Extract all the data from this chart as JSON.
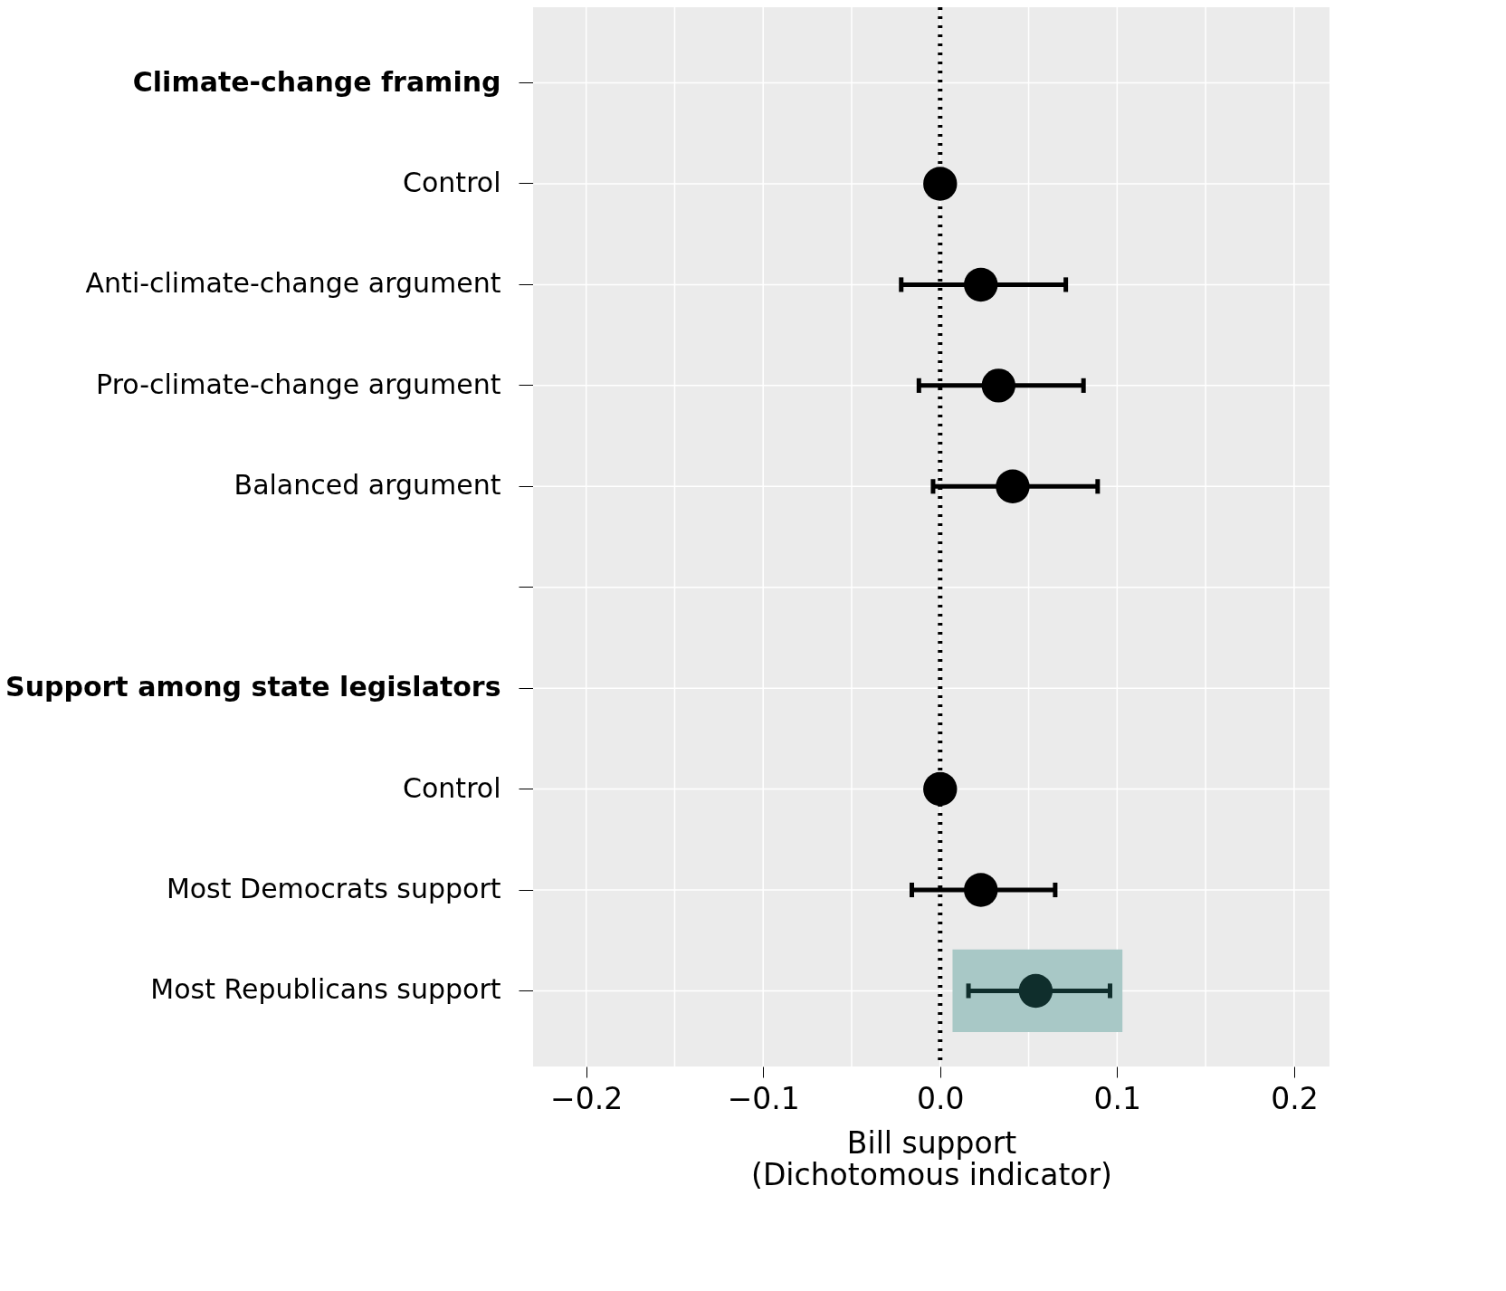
{
  "chart_data": {
    "type": "scatter",
    "orientation": "horizontal",
    "categories": [
      "Climate-change framing",
      "Control",
      "Anti-climate-change argument",
      "Pro-climate-change argument",
      "Balanced argument",
      null,
      "Support among state legislators",
      "Control",
      "Most Democrats support",
      "Most Republicans support"
    ],
    "series": [
      {
        "color": "#000000",
        "values": [
          null,
          0.0,
          0.023,
          0.033,
          0.041,
          null,
          null,
          0.0,
          0.023,
          null
        ],
        "errors": [
          null,
          null,
          [
            -0.022,
            0.071
          ],
          [
            -0.012,
            0.081
          ],
          [
            -0.004,
            0.089
          ],
          null,
          null,
          null,
          [
            -0.016,
            0.065
          ],
          null
        ]
      },
      {
        "color": "#0f2e2c",
        "values": [
          null,
          null,
          null,
          null,
          null,
          null,
          null,
          null,
          null,
          0.054
        ],
        "errors": [
          null,
          null,
          null,
          null,
          null,
          null,
          null,
          null,
          null,
          [
            0.016,
            0.096
          ]
        ]
      }
    ],
    "xlabel": "Bill support\n(Dichotomous indicator)",
    "xlim": [
      -0.23,
      0.22
    ],
    "xticks": [
      {
        "value": -0.2,
        "label": "−0.2"
      },
      {
        "value": -0.15,
        "label": null
      },
      {
        "value": -0.1,
        "label": "−0.1"
      },
      {
        "value": -0.05,
        "label": null
      },
      {
        "value": 0,
        "label": "0.0"
      },
      {
        "value": 0.05,
        "label": null
      },
      {
        "value": 0.1,
        "label": "0.1"
      },
      {
        "value": 0.15,
        "label": null
      },
      {
        "value": 0.2,
        "label": "0.2"
      }
    ],
    "ref_lines": [
      {
        "axis": "x",
        "value": 0,
        "color": "#000000",
        "line_style": "dotted"
      }
    ],
    "bands": [
      {
        "axis": "x",
        "from": 0.007,
        "to": 0.103,
        "color": "#a8c8c6"
      }
    ],
    "grid": true,
    "marker": "circle"
  }
}
